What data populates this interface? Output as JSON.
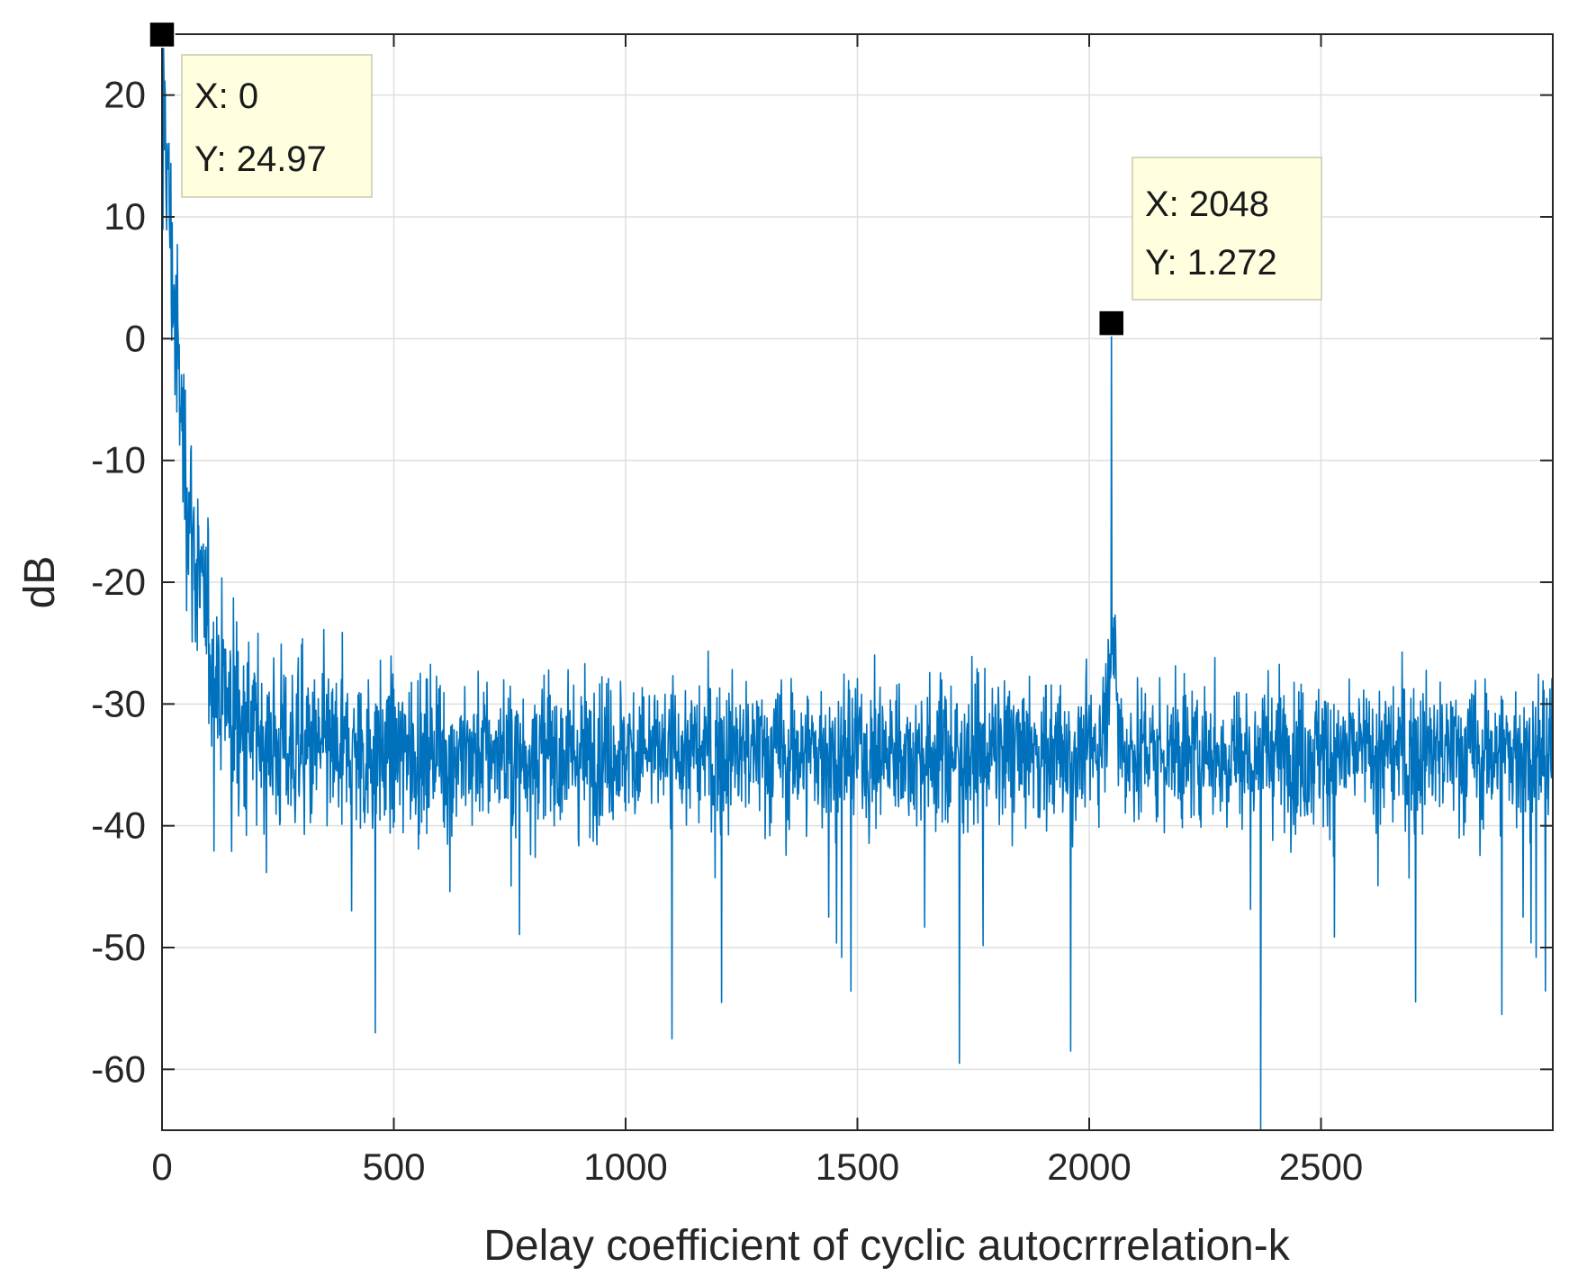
{
  "chart_data": {
    "type": "line",
    "title": "",
    "xlabel": "Delay coefficient of cyclic autocrrrelation-k",
    "ylabel": "dB",
    "xlim": [
      0,
      3000
    ],
    "ylim": [
      -65,
      25
    ],
    "xticks": [
      0,
      500,
      1000,
      1500,
      2000,
      2500
    ],
    "yticks": [
      20,
      10,
      0,
      -10,
      -20,
      -30,
      -40,
      -50,
      -60
    ],
    "grid": true,
    "series": [
      {
        "color": "#0072BD",
        "description": "cyclic autocorrelation magnitude vs delay k",
        "key_points": [
          {
            "x": 0,
            "y": 24.97
          },
          {
            "x": 5,
            "y": 10
          },
          {
            "x": 20,
            "y": -5
          },
          {
            "x": 50,
            "y": -15
          },
          {
            "x": 100,
            "y": -22
          },
          {
            "x": 200,
            "y": -28
          },
          {
            "x": 400,
            "y": -33
          },
          {
            "x": 1000,
            "y": -34
          },
          {
            "x": 2000,
            "y": -33
          },
          {
            "x": 2040,
            "y": -22
          },
          {
            "x": 2048,
            "y": 1.272
          },
          {
            "x": 2056,
            "y": -22
          },
          {
            "x": 2100,
            "y": -33
          },
          {
            "x": 3000,
            "y": -34
          }
        ],
        "noise_floor_db": -34,
        "deep_nulls": [
          {
            "x": 460,
            "y": -57
          },
          {
            "x": 1100,
            "y": -57.5
          },
          {
            "x": 1720,
            "y": -59.5
          },
          {
            "x": 1960,
            "y": -58.5
          },
          {
            "x": 2370,
            "y": -65
          },
          {
            "x": 2890,
            "y": -55.5
          }
        ]
      }
    ],
    "datatips": [
      {
        "x_text": "X: 0",
        "y_text": "Y: 24.97",
        "x": 0,
        "y": 24.97
      },
      {
        "x_text": "X: 2048",
        "y_text": "Y: 1.272",
        "x": 2048,
        "y": 1.272
      }
    ],
    "axis_color": "#262626",
    "grid_color": "#dfdfdf",
    "datatip_fill": "#ffffe0"
  }
}
